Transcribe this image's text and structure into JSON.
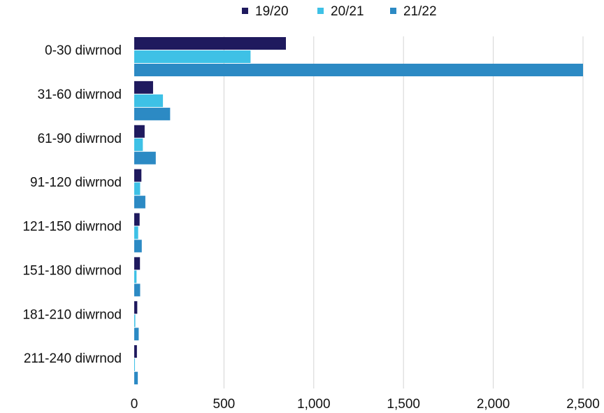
{
  "chart_data": {
    "type": "bar",
    "orientation": "horizontal",
    "title": "",
    "xlabel": "",
    "ylabel": "",
    "categories": [
      "0-30 diwrnod",
      "31-60 diwrnod",
      "61-90 diwrnod",
      "91-120 diwrnod",
      "121-150 diwrnod",
      "151-180 diwrnod",
      "181-210 diwrnod",
      "211-240 diwrnod"
    ],
    "series": [
      {
        "name": "19/20",
        "color": "#1f1a5e",
        "values": [
          845,
          105,
          58,
          40,
          30,
          32,
          17,
          15
        ]
      },
      {
        "name": "20/21",
        "color": "#3ec1e6",
        "values": [
          648,
          160,
          48,
          33,
          22,
          13,
          6,
          4
        ]
      },
      {
        "name": "21/22",
        "color": "#2c8ac4",
        "values": [
          2500,
          200,
          120,
          62,
          42,
          33,
          25,
          20
        ]
      }
    ],
    "xlim": [
      0,
      2500
    ],
    "xticks": [
      0,
      500,
      1000,
      1500,
      2000,
      2500
    ],
    "xtick_labels": [
      "0",
      "500",
      "1,000",
      "1,500",
      "2,000",
      "2,500"
    ],
    "grid": "vertical",
    "legend_position": "top"
  }
}
